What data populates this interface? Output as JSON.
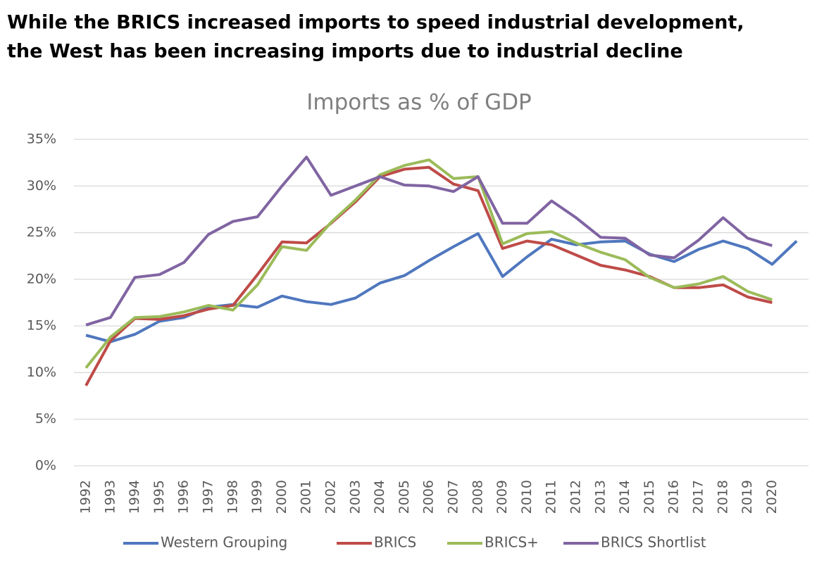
{
  "heading": [
    "While the BRICS increased imports to speed industrial development,",
    "the West has been increasing imports due to industrial decline"
  ],
  "chart_data": {
    "type": "line",
    "title": "Imports as % of GDP",
    "categories": [
      "1992",
      "1993",
      "1994",
      "1995",
      "1996",
      "1997",
      "1998",
      "1999",
      "2000",
      "2001",
      "2002",
      "2003",
      "2004",
      "2005",
      "2006",
      "2007",
      "2008",
      "2009",
      "2010",
      "2011",
      "2012",
      "2013",
      "2014",
      "2015",
      "2016",
      "2017",
      "2018",
      "2019",
      "2020",
      null
    ],
    "series": [
      {
        "name": "Western Grouping",
        "color": "#4f77be",
        "values": [
          14.0,
          13.3,
          14.1,
          15.5,
          15.9,
          17.0,
          17.3,
          17.0,
          18.2,
          17.6,
          17.3,
          18.0,
          19.6,
          20.4,
          22.0,
          23.5,
          24.9,
          20.3,
          22.4,
          24.3,
          23.7,
          24.0,
          24.1,
          22.7,
          21.9,
          23.2,
          24.1,
          23.3,
          21.6,
          24.1
        ]
      },
      {
        "name": "BRICS",
        "color": "#be4b48",
        "values": [
          8.6,
          13.4,
          15.8,
          15.7,
          16.1,
          16.8,
          17.2,
          20.5,
          24.0,
          23.9,
          26.0,
          28.3,
          31.0,
          31.8,
          32.0,
          30.2,
          29.5,
          23.3,
          24.1,
          23.7,
          22.6,
          21.5,
          21.0,
          20.3,
          19.1,
          19.1,
          19.4,
          18.1,
          17.5,
          null
        ]
      },
      {
        "name": "BRICS+",
        "color": "#9bbb59",
        "values": [
          10.5,
          13.8,
          15.9,
          16.0,
          16.5,
          17.2,
          16.7,
          19.4,
          23.5,
          23.1,
          26.1,
          28.5,
          31.2,
          32.2,
          32.8,
          30.8,
          31.0,
          23.8,
          24.9,
          25.1,
          23.9,
          22.9,
          22.1,
          20.2,
          19.1,
          19.5,
          20.3,
          18.7,
          17.8,
          null
        ]
      },
      {
        "name": "BRICS Shortlist",
        "color": "#8064a2",
        "values": [
          15.1,
          15.9,
          20.2,
          20.5,
          21.8,
          24.8,
          26.2,
          26.7,
          30.0,
          33.1,
          29.0,
          30.0,
          31.0,
          30.1,
          30.0,
          29.4,
          31.0,
          26.0,
          26.0,
          28.4,
          26.6,
          24.5,
          24.4,
          22.6,
          22.3,
          24.2,
          26.6,
          24.4,
          23.6,
          null
        ]
      }
    ],
    "ylim": [
      0,
      35
    ],
    "yticks": [
      {
        "value": 0,
        "label": "0%"
      },
      {
        "value": 5,
        "label": "5%"
      },
      {
        "value": 10,
        "label": "10%"
      },
      {
        "value": 15,
        "label": "15%"
      },
      {
        "value": 20,
        "label": "20%"
      },
      {
        "value": 25,
        "label": "25%"
      },
      {
        "value": 30,
        "label": "30%"
      },
      {
        "value": 35,
        "label": "35%"
      }
    ],
    "grid": true,
    "legend": "bottom"
  }
}
